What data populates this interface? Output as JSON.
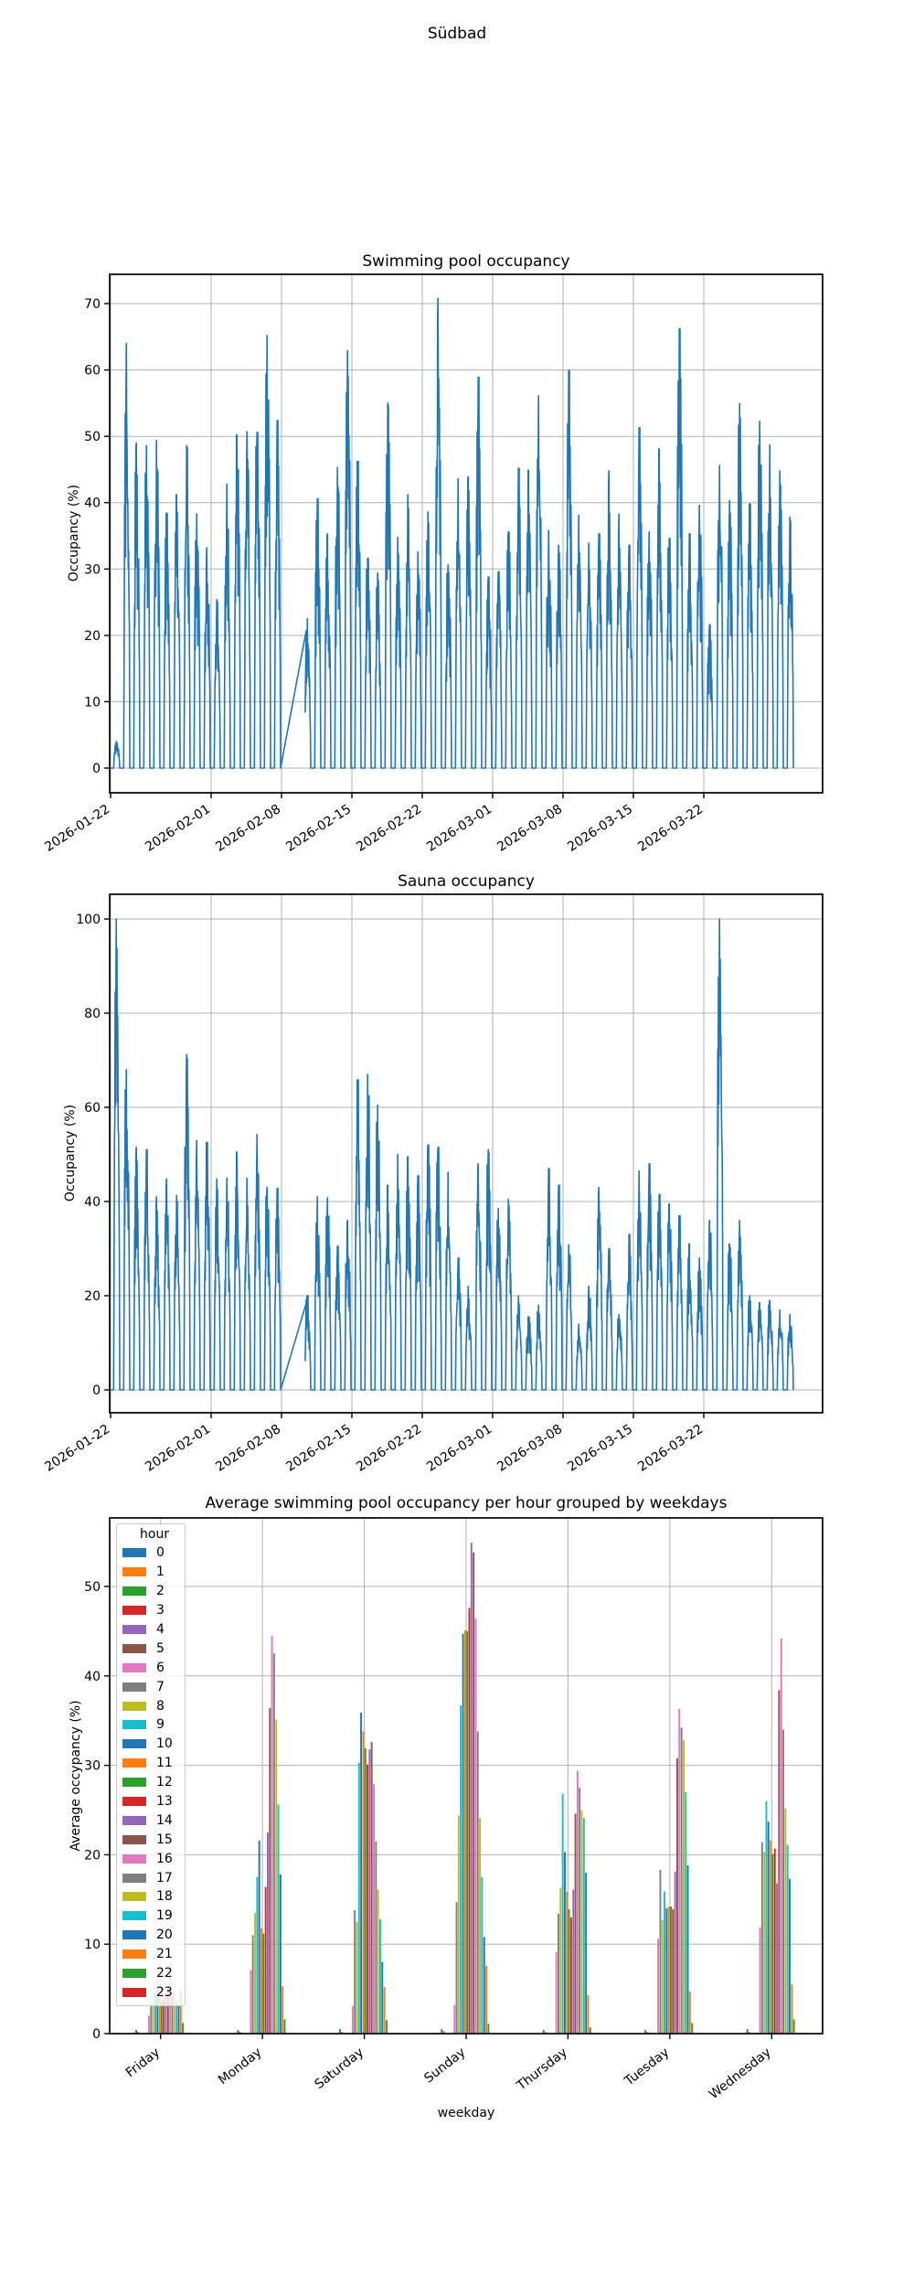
{
  "figure": {
    "title": "Südbad",
    "background": "#ffffff"
  },
  "colors": {
    "line": "#1f77b4",
    "grid": "#b0b0b0",
    "spine": "#000000",
    "cycle": [
      "#1f77b4",
      "#ff7f0e",
      "#2ca02c",
      "#d62728",
      "#9467bd",
      "#8c564b",
      "#e377c2",
      "#7f7f7f",
      "#bcbd22",
      "#17becf"
    ]
  },
  "chart_data": [
    {
      "type": "line",
      "title": "Swimming pool occupancy",
      "ylabel": "Occupancy (%)",
      "line_color": "#1f77b4",
      "yticks": [
        0,
        10,
        20,
        30,
        40,
        50,
        60,
        70
      ],
      "ylim": [
        0,
        74
      ],
      "x_start_date": "2026-01-22",
      "xtick_labels": [
        "2026-01-22",
        "2026-02-01",
        "2026-02-08",
        "2026-02-15",
        "2026-02-22",
        "2026-03-01",
        "2026-03-08",
        "2026-03-15",
        "2026-03-22"
      ],
      "xtick_day_offsets": [
        0,
        10,
        17,
        24,
        31,
        38,
        45,
        52,
        59
      ],
      "open_hour": 8,
      "close_hour": 22,
      "grid": true,
      "daily_peaks": [
        4,
        64,
        49,
        48.6,
        49.4,
        38.4,
        41.2,
        48.6,
        38.3,
        33.2,
        25.4,
        42.8,
        50.2,
        50.7,
        50.6,
        65.2,
        52.4,
        null,
        null,
        22.5,
        40.6,
        35.3,
        45.3,
        62.9,
        46.2,
        31.6,
        29.4,
        55.0,
        34.8,
        41.2,
        32.6,
        38.6,
        70.8,
        30.6,
        43.6,
        43.9,
        58.9,
        28.8,
        29.6,
        35.6,
        45.2,
        44.9,
        56.1,
        35.8,
        33.6,
        59.9,
        38.1,
        33.9,
        35.3,
        44.8,
        38.3,
        33.6,
        51.3,
        35.6,
        48.1,
        34.6,
        66.2,
        35.3,
        39.6,
        21.6,
        45.6,
        40.3,
        54.9,
        39.8,
        52.3,
        48.7,
        44.8,
        37.8
      ]
    },
    {
      "type": "line",
      "title": "Sauna occupancy",
      "ylabel": "Occupancy (%)",
      "line_color": "#1f77b4",
      "yticks": [
        0,
        20,
        40,
        60,
        80,
        100
      ],
      "ylim": [
        0,
        105
      ],
      "x_start_date": "2026-01-22",
      "xtick_labels": [
        "2026-01-22",
        "2026-02-01",
        "2026-02-08",
        "2026-02-15",
        "2026-02-22",
        "2026-03-01",
        "2026-03-08",
        "2026-03-15",
        "2026-03-22"
      ],
      "xtick_day_offsets": [
        0,
        10,
        17,
        24,
        31,
        38,
        45,
        52,
        59
      ],
      "open_hour": 8,
      "close_hour": 22,
      "grid": true,
      "daily_peaks": [
        100,
        68,
        51.5,
        51,
        41,
        44.8,
        41.3,
        71.2,
        53,
        52.5,
        44.8,
        45,
        50.5,
        45,
        54.3,
        43,
        42.8,
        null,
        null,
        20,
        41,
        40.8,
        30.5,
        36,
        65.8,
        67,
        60.5,
        43.5,
        50,
        49.5,
        45.5,
        52,
        51.5,
        46.2,
        28,
        22,
        48,
        51,
        38.5,
        40.5,
        20,
        15.5,
        18,
        47,
        43.5,
        30.8,
        14,
        22,
        43,
        30,
        16,
        33,
        46.5,
        48,
        41.5,
        39.5,
        37,
        31,
        28,
        36,
        100,
        31,
        36,
        20,
        18.5,
        19,
        17,
        16
      ]
    },
    {
      "type": "bar",
      "title": "Average swimming pool occupancy per hour grouped by weekdays",
      "xlabel": "weekday",
      "ylabel": "Average occypancy (%)",
      "legend_title": "hour",
      "yticks": [
        0,
        10,
        20,
        30,
        40,
        50
      ],
      "ylim": [
        0,
        57.7
      ],
      "grid": true,
      "legend_position": "upper left",
      "categories": [
        "Friday",
        "Monday",
        "Saturday",
        "Sunday",
        "Thursday",
        "Tuesday",
        "Wednesday"
      ],
      "hours": [
        0,
        1,
        2,
        3,
        4,
        5,
        6,
        7,
        8,
        9,
        10,
        11,
        12,
        13,
        14,
        15,
        16,
        17,
        18,
        19,
        20,
        21,
        22,
        23
      ],
      "values_by_weekday": {
        "Friday": [
          0.4,
          0.2,
          0,
          0,
          0,
          0,
          2.0,
          3.1,
          4.2,
          4.5,
          5.0,
          4.1,
          3.6,
          3.8,
          4.3,
          5.1,
          8.0,
          4.2,
          4.6,
          3.6,
          3.1,
          4.8,
          1.2,
          0
        ],
        "Monday": [
          0.4,
          0.2,
          0,
          0,
          0,
          0,
          7.1,
          11.0,
          13.5,
          17.5,
          21.6,
          11.8,
          11.2,
          16.4,
          22.5,
          36.4,
          44.5,
          42.5,
          35.1,
          25.6,
          17.8,
          5.3,
          1.6,
          0
        ],
        "Saturday": [
          0.5,
          0.2,
          0,
          0,
          0,
          0,
          3.1,
          13.8,
          12.5,
          30.3,
          35.9,
          33.8,
          31.9,
          30.1,
          31.8,
          32.6,
          27.9,
          21.5,
          16.1,
          12.8,
          8.0,
          5.2,
          1.5,
          0
        ],
        "Sunday": [
          0.5,
          0.3,
          0,
          0,
          0,
          0,
          3.2,
          14.7,
          24.4,
          36.7,
          44.7,
          45.1,
          45.0,
          47.6,
          54.9,
          53.8,
          46.4,
          33.8,
          24.1,
          17.5,
          10.8,
          7.6,
          1.1,
          0
        ],
        "Thursday": [
          0.4,
          0.2,
          0,
          0,
          0,
          0,
          9.1,
          13.4,
          16.3,
          26.8,
          20.3,
          15.9,
          13.9,
          13.0,
          16.1,
          24.6,
          29.4,
          27.5,
          25.0,
          24.1,
          18.0,
          4.3,
          0.7,
          0
        ],
        "Tuesday": [
          0.4,
          0.2,
          0,
          0,
          0,
          0,
          10.6,
          18.3,
          12.7,
          15.9,
          14.0,
          14.2,
          14.2,
          13.9,
          18.1,
          30.8,
          36.3,
          34.2,
          32.8,
          27.0,
          18.8,
          4.7,
          1.2,
          0
        ],
        "Wednesday": [
          0.5,
          0.2,
          0,
          0,
          0,
          0,
          11.9,
          21.4,
          20.3,
          26.0,
          23.7,
          21.6,
          20.1,
          20.7,
          16.8,
          38.4,
          44.2,
          34.0,
          25.2,
          21.1,
          17.3,
          5.5,
          1.6,
          0
        ]
      }
    }
  ]
}
